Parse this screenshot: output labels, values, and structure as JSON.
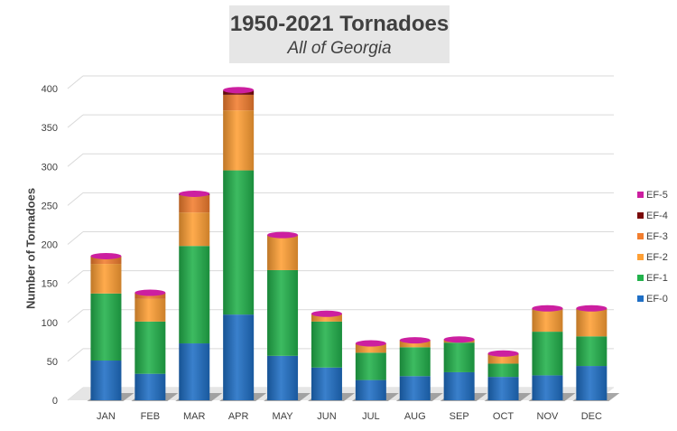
{
  "chart_data": {
    "type": "bar",
    "stacked": true,
    "title": "1950-2021 Tornadoes",
    "subtitle": "All of Georgia",
    "xlabel": "",
    "ylabel": "Number of Tornadoes",
    "ylim": [
      0,
      400
    ],
    "yticks": [
      0,
      50,
      100,
      150,
      200,
      250,
      300,
      350,
      400
    ],
    "grid": true,
    "legend_position": "right",
    "categories": [
      "JAN",
      "FEB",
      "MAR",
      "APR",
      "MAY",
      "JUN",
      "JUL",
      "AUG",
      "SEP",
      "OCT",
      "NOV",
      "DEC"
    ],
    "series": [
      {
        "name": "EF-0",
        "color": "#1f6fc5",
        "values": [
          51,
          34,
          73,
          110,
          57,
          42,
          26,
          31,
          36,
          30,
          32,
          44
        ]
      },
      {
        "name": "EF-1",
        "color": "#22b24c",
        "values": [
          86,
          67,
          125,
          185,
          110,
          59,
          35,
          37,
          38,
          17,
          56,
          38
        ]
      },
      {
        "name": "EF-2",
        "color": "#ffa035",
        "values": [
          38,
          29,
          43,
          77,
          45,
          9,
          11,
          8,
          4,
          10,
          27,
          34
        ]
      },
      {
        "name": "EF-3",
        "color": "#f27e2f",
        "values": [
          10,
          8,
          22,
          20,
          0,
          1,
          1,
          1,
          0,
          3,
          2,
          2
        ]
      },
      {
        "name": "EF-4",
        "color": "#7a0a0a",
        "values": [
          0,
          0,
          2,
          5,
          0,
          0,
          0,
          0,
          0,
          0,
          1,
          0
        ]
      },
      {
        "name": "EF-5",
        "color": "#cc1fa0",
        "values": [
          0,
          0,
          0,
          1,
          0,
          0,
          0,
          0,
          0,
          0,
          0,
          0
        ]
      }
    ]
  }
}
